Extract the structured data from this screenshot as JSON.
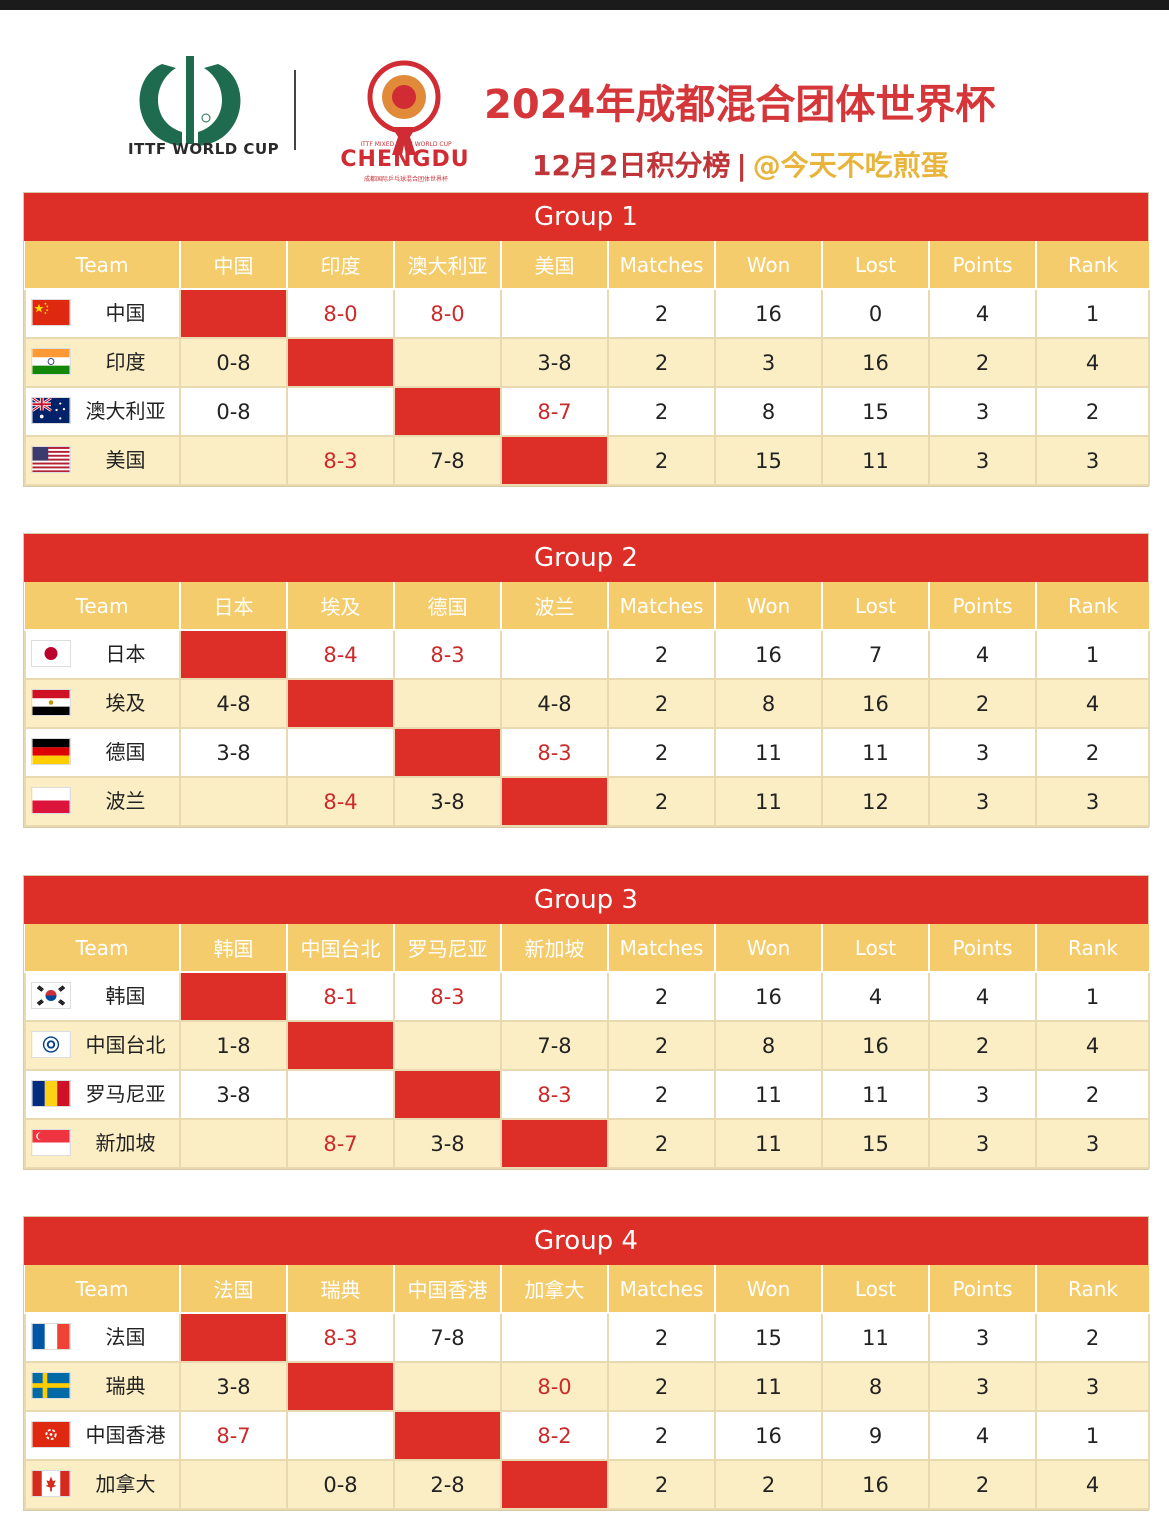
{
  "header": {
    "ittf_logo_text": "ITTF WORLD CUP",
    "chengdu_logo_small": "ITTF MIXED TEAM WORLD CUP",
    "chengdu_logo_text": "CHENGDU",
    "chengdu_logo_sub": "成都国际乒乓球混合团体世界杯",
    "title": "2024年成都混合团体世界杯",
    "subtitle": "12月2日积分榜",
    "separator": "|",
    "author": "@今天不吃煎蛋"
  },
  "colors": {
    "accent_red": "#dd2e27",
    "header_gold": "#f5cc6b",
    "row_cream": "#fbeec5",
    "title_red": "#d5363a"
  },
  "groups": [
    {
      "title": "Group 1",
      "header": [
        "Team",
        "中国",
        "印度",
        "澳大利亚",
        "美国",
        "Matches",
        "Won",
        "Lost",
        "Points",
        "Rank"
      ],
      "rows": [
        {
          "flag": "cn-flag",
          "team": "中国",
          "results": [
            "",
            "8-0",
            "8-0",
            ""
          ],
          "matches": "2",
          "won": "16",
          "lost": "0",
          "points": "4",
          "rank": "1"
        },
        {
          "flag": "in-flag",
          "team": "印度",
          "results": [
            "0-8",
            "",
            "",
            "3-8"
          ],
          "matches": "2",
          "won": "3",
          "lost": "16",
          "points": "2",
          "rank": "4"
        },
        {
          "flag": "au-flag",
          "team": "澳大利亚",
          "results": [
            "0-8",
            "",
            "",
            "8-7"
          ],
          "matches": "2",
          "won": "8",
          "lost": "15",
          "points": "3",
          "rank": "2"
        },
        {
          "flag": "us-flag",
          "team": "美国",
          "results": [
            "",
            "8-3",
            "7-8",
            ""
          ],
          "matches": "2",
          "won": "15",
          "lost": "11",
          "points": "3",
          "rank": "3"
        }
      ]
    },
    {
      "title": "Group 2",
      "header": [
        "Team",
        "日本",
        "埃及",
        "德国",
        "波兰",
        "Matches",
        "Won",
        "Lost",
        "Points",
        "Rank"
      ],
      "rows": [
        {
          "flag": "jp-flag",
          "team": "日本",
          "results": [
            "",
            "8-4",
            "8-3",
            ""
          ],
          "matches": "2",
          "won": "16",
          "lost": "7",
          "points": "4",
          "rank": "1"
        },
        {
          "flag": "eg-flag",
          "team": "埃及",
          "results": [
            "4-8",
            "",
            "",
            "4-8"
          ],
          "matches": "2",
          "won": "8",
          "lost": "16",
          "points": "2",
          "rank": "4"
        },
        {
          "flag": "de-flag",
          "team": "德国",
          "results": [
            "3-8",
            "",
            "",
            "8-3"
          ],
          "matches": "2",
          "won": "11",
          "lost": "11",
          "points": "3",
          "rank": "2"
        },
        {
          "flag": "pl-flag",
          "team": "波兰",
          "results": [
            "",
            "8-4",
            "3-8",
            ""
          ],
          "matches": "2",
          "won": "11",
          "lost": "12",
          "points": "3",
          "rank": "3"
        }
      ]
    },
    {
      "title": "Group 3",
      "header": [
        "Team",
        "韩国",
        "中国台北",
        "罗马尼亚",
        "新加坡",
        "Matches",
        "Won",
        "Lost",
        "Points",
        "Rank"
      ],
      "rows": [
        {
          "flag": "kr-flag",
          "team": "韩国",
          "results": [
            "",
            "8-1",
            "8-3",
            ""
          ],
          "matches": "2",
          "won": "16",
          "lost": "4",
          "points": "4",
          "rank": "1"
        },
        {
          "flag": "tpe-flag",
          "team": "中国台北",
          "results": [
            "1-8",
            "",
            "",
            "7-8"
          ],
          "matches": "2",
          "won": "8",
          "lost": "16",
          "points": "2",
          "rank": "4"
        },
        {
          "flag": "ro-flag",
          "team": "罗马尼亚",
          "results": [
            "3-8",
            "",
            "",
            "8-3"
          ],
          "matches": "2",
          "won": "11",
          "lost": "11",
          "points": "3",
          "rank": "2"
        },
        {
          "flag": "sg-flag",
          "team": "新加坡",
          "results": [
            "",
            "8-7",
            "3-8",
            ""
          ],
          "matches": "2",
          "won": "11",
          "lost": "15",
          "points": "3",
          "rank": "3"
        }
      ]
    },
    {
      "title": "Group 4",
      "header": [
        "Team",
        "法国",
        "瑞典",
        "中国香港",
        "加拿大",
        "Matches",
        "Won",
        "Lost",
        "Points",
        "Rank"
      ],
      "rows": [
        {
          "flag": "fr-flag",
          "team": "法国",
          "results": [
            "",
            "8-3",
            "7-8",
            ""
          ],
          "matches": "2",
          "won": "15",
          "lost": "11",
          "points": "3",
          "rank": "2"
        },
        {
          "flag": "se-flag",
          "team": "瑞典",
          "results": [
            "3-8",
            "",
            "",
            "8-0"
          ],
          "matches": "2",
          "won": "11",
          "lost": "8",
          "points": "3",
          "rank": "3"
        },
        {
          "flag": "hk-flag",
          "team": "中国香港",
          "results": [
            "8-7",
            "",
            "",
            "8-2"
          ],
          "matches": "2",
          "won": "16",
          "lost": "9",
          "points": "4",
          "rank": "1"
        },
        {
          "flag": "ca-flag",
          "team": "加拿大",
          "results": [
            "",
            "0-8",
            "2-8",
            ""
          ],
          "matches": "2",
          "won": "2",
          "lost": "16",
          "points": "2",
          "rank": "4"
        }
      ]
    }
  ]
}
